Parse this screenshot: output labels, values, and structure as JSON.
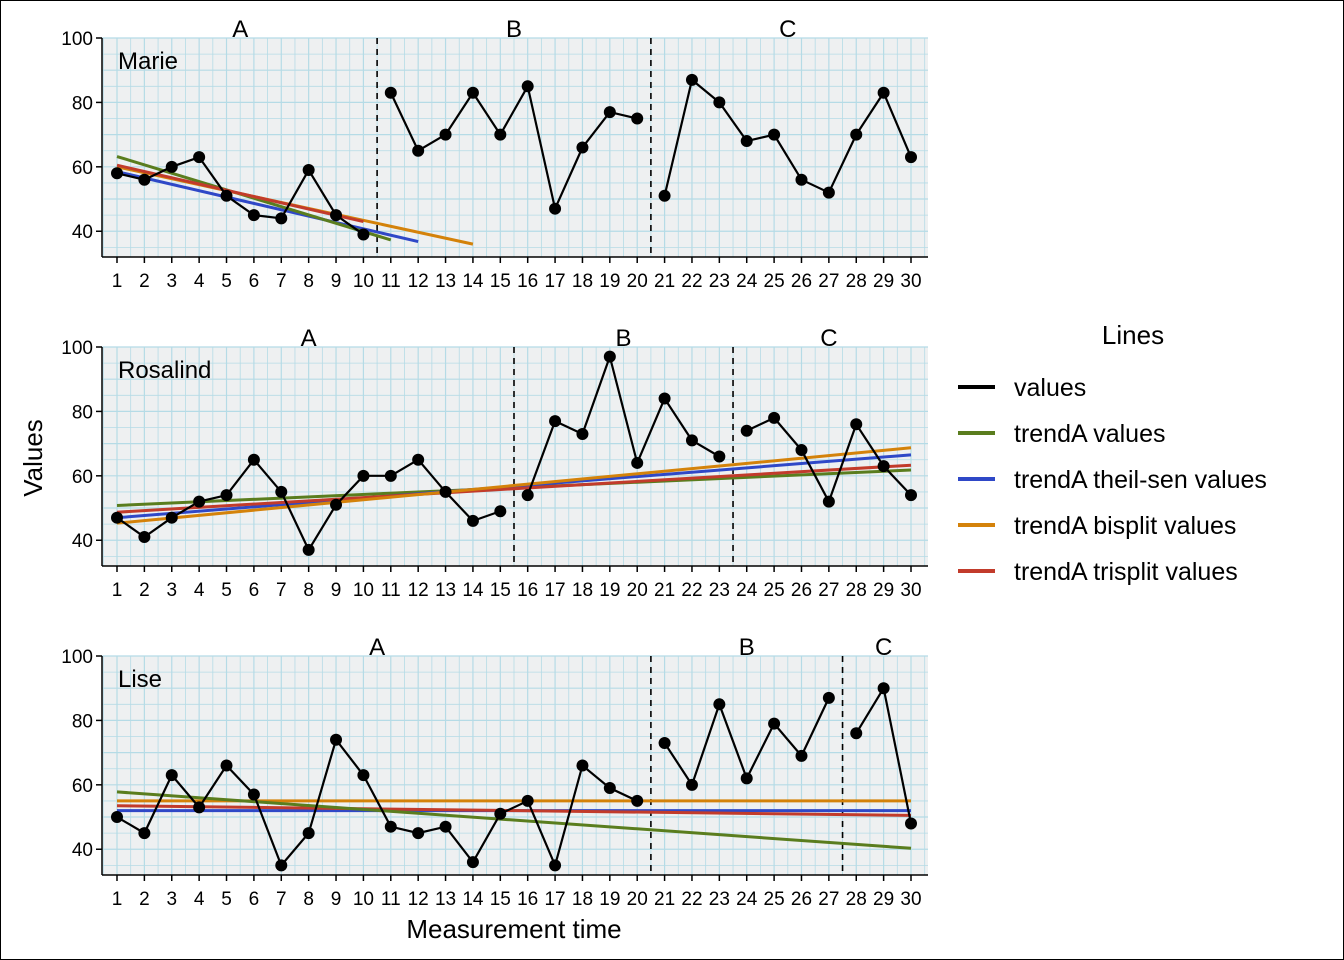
{
  "chart_data": {
    "type": "line",
    "xlabel": "Measurement time",
    "ylabel": "Values",
    "xlim": [
      1,
      30
    ],
    "ylim": [
      32,
      100
    ],
    "y_ticks": [
      40,
      60,
      80,
      100
    ],
    "x_ticks": [
      1,
      2,
      3,
      4,
      5,
      6,
      7,
      8,
      9,
      10,
      11,
      12,
      13,
      14,
      15,
      16,
      17,
      18,
      19,
      20,
      21,
      22,
      23,
      24,
      25,
      26,
      27,
      28,
      29,
      30
    ],
    "grid": true,
    "legend": {
      "title": "Lines",
      "position": "right",
      "entries": [
        {
          "label": "values",
          "color": "#000000"
        },
        {
          "label": "trendA values",
          "color": "#5a7d1e"
        },
        {
          "label": "trendA theil-sen values",
          "color": "#2f48c7"
        },
        {
          "label": "trendA bisplit values",
          "color": "#d4820a"
        },
        {
          "label": "trendA trisplit values",
          "color": "#c23b2b"
        }
      ]
    },
    "panels": [
      {
        "case": "Marie",
        "phases": [
          {
            "label": "A",
            "start": 1,
            "end": 10
          },
          {
            "label": "B",
            "start": 11,
            "end": 20
          },
          {
            "label": "C",
            "start": 21,
            "end": 30
          }
        ],
        "phase_boundaries": [
          10.5,
          20.5
        ],
        "values": [
          58,
          56,
          60,
          63,
          51,
          45,
          44,
          59,
          45,
          39,
          83,
          65,
          70,
          83,
          70,
          85,
          47,
          66,
          77,
          75,
          51,
          87,
          80,
          68,
          70,
          56,
          52,
          70,
          83,
          63
        ],
        "trends": [
          {
            "name": "trendA theil-sen values",
            "x": [
              1,
              12
            ],
            "y": [
              58.5,
              36.8
            ]
          },
          {
            "name": "trendA values",
            "x": [
              1,
              11
            ],
            "y": [
              63.2,
              37.3
            ]
          },
          {
            "name": "trendA bisplit values",
            "x": [
              1,
              14
            ],
            "y": [
              60.0,
              36.0
            ]
          },
          {
            "name": "trendA trisplit values",
            "x": [
              1,
              10
            ],
            "y": [
              60.5,
              43.0
            ]
          }
        ]
      },
      {
        "case": "Rosalind",
        "phases": [
          {
            "label": "A",
            "start": 1,
            "end": 15
          },
          {
            "label": "B",
            "start": 16,
            "end": 23
          },
          {
            "label": "C",
            "start": 24,
            "end": 30
          }
        ],
        "phase_boundaries": [
          15.5,
          23.5
        ],
        "values": [
          47,
          41,
          47,
          52,
          54,
          65,
          55,
          37,
          51,
          60,
          60,
          65,
          55,
          46,
          49,
          54,
          77,
          73,
          97,
          64,
          84,
          71,
          66,
          74,
          78,
          68,
          52,
          76,
          63,
          54
        ],
        "trends": [
          {
            "name": "trendA values",
            "x": [
              1,
              30
            ],
            "y": [
              50.8,
              61.8
            ]
          },
          {
            "name": "trendA theil-sen values",
            "x": [
              1,
              30
            ],
            "y": [
              47.0,
              66.5
            ]
          },
          {
            "name": "trendA trisplit values",
            "x": [
              1,
              30
            ],
            "y": [
              48.7,
              63.3
            ]
          },
          {
            "name": "trendA bisplit values",
            "x": [
              1,
              30
            ],
            "y": [
              45.3,
              68.7
            ]
          }
        ]
      },
      {
        "case": "Lise",
        "phases": [
          {
            "label": "A",
            "start": 1,
            "end": 20
          },
          {
            "label": "B",
            "start": 21,
            "end": 27
          },
          {
            "label": "C",
            "start": 28,
            "end": 30
          }
        ],
        "phase_boundaries": [
          20.5,
          27.5
        ],
        "values": [
          50,
          45,
          63,
          53,
          66,
          57,
          35,
          45,
          74,
          63,
          47,
          45,
          47,
          36,
          51,
          55,
          35,
          66,
          59,
          55,
          73,
          60,
          85,
          62,
          79,
          69,
          87,
          76,
          90,
          48
        ],
        "trends": [
          {
            "name": "trendA theil-sen values",
            "x": [
              1,
              30
            ],
            "y": [
              52.0,
              52.0
            ]
          },
          {
            "name": "trendA trisplit values",
            "x": [
              1,
              30
            ],
            "y": [
              53.5,
              50.5
            ]
          },
          {
            "name": "trendA bisplit values",
            "x": [
              1,
              30
            ],
            "y": [
              55.0,
              55.0
            ]
          },
          {
            "name": "trendA values",
            "x": [
              1,
              30
            ],
            "y": [
              57.8,
              40.3
            ]
          }
        ]
      }
    ]
  }
}
